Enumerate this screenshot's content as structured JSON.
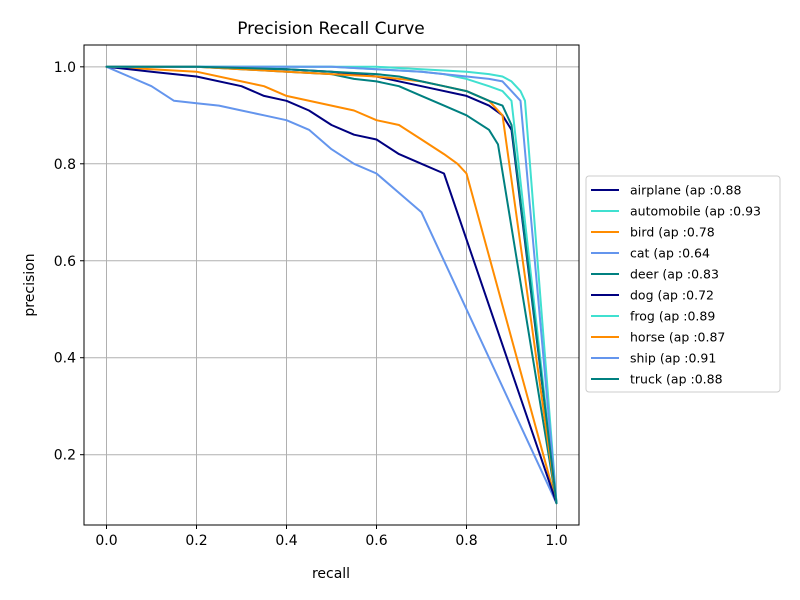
{
  "chart_data": {
    "type": "line",
    "title": "Precision Recall Curve",
    "xlabel": "recall",
    "ylabel": "precision",
    "xlim": [
      -0.05,
      1.05
    ],
    "ylim": [
      0.055,
      1.045
    ],
    "xticks": [
      0.0,
      0.2,
      0.4,
      0.6,
      0.8,
      1.0
    ],
    "yticks": [
      0.2,
      0.4,
      0.6,
      0.8,
      1.0
    ],
    "xtick_labels": [
      "0.0",
      "0.2",
      "0.4",
      "0.6",
      "0.8",
      "1.0"
    ],
    "ytick_labels": [
      "0.2",
      "0.4",
      "0.6",
      "0.8",
      "1.0"
    ],
    "grid": true,
    "legend_position": "right",
    "series": [
      {
        "name": "airplane (ap :0.88",
        "color": "#000080",
        "x": [
          0.0,
          0.2,
          0.4,
          0.5,
          0.6,
          0.7,
          0.8,
          0.85,
          0.88,
          0.9,
          1.0
        ],
        "y": [
          1.0,
          1.0,
          0.995,
          0.99,
          0.98,
          0.96,
          0.94,
          0.92,
          0.9,
          0.87,
          0.1
        ]
      },
      {
        "name": "automobile (ap :0.93",
        "color": "#40E0D0",
        "x": [
          0.0,
          0.3,
          0.5,
          0.6,
          0.7,
          0.8,
          0.85,
          0.88,
          0.9,
          0.92,
          0.93,
          1.0
        ],
        "y": [
          1.0,
          1.0,
          1.0,
          1.0,
          0.995,
          0.99,
          0.985,
          0.98,
          0.97,
          0.95,
          0.93,
          0.1
        ]
      },
      {
        "name": "bird (ap :0.78",
        "color": "#FF8C00",
        "x": [
          0.0,
          0.1,
          0.2,
          0.3,
          0.35,
          0.4,
          0.5,
          0.55,
          0.6,
          0.65,
          0.7,
          0.75,
          0.78,
          0.8,
          1.0
        ],
        "y": [
          1.0,
          0.995,
          0.99,
          0.97,
          0.96,
          0.94,
          0.92,
          0.91,
          0.89,
          0.88,
          0.85,
          0.82,
          0.8,
          0.78,
          0.1
        ]
      },
      {
        "name": "cat (ap :0.64",
        "color": "#6495ED",
        "x": [
          0.0,
          0.05,
          0.1,
          0.15,
          0.2,
          0.25,
          0.3,
          0.35,
          0.4,
          0.45,
          0.5,
          0.55,
          0.6,
          0.65,
          0.7,
          1.0
        ],
        "y": [
          1.0,
          0.98,
          0.96,
          0.93,
          0.925,
          0.92,
          0.91,
          0.9,
          0.89,
          0.87,
          0.83,
          0.8,
          0.78,
          0.74,
          0.7,
          0.1
        ]
      },
      {
        "name": "deer (ap :0.83",
        "color": "#008080",
        "x": [
          0.0,
          0.2,
          0.4,
          0.5,
          0.55,
          0.6,
          0.65,
          0.7,
          0.75,
          0.8,
          0.85,
          0.87,
          1.0
        ],
        "y": [
          1.0,
          1.0,
          0.99,
          0.985,
          0.975,
          0.97,
          0.96,
          0.94,
          0.92,
          0.9,
          0.87,
          0.84,
          0.1
        ]
      },
      {
        "name": "dog (ap :0.72",
        "color": "#000080",
        "x": [
          0.0,
          0.1,
          0.2,
          0.3,
          0.35,
          0.4,
          0.45,
          0.5,
          0.55,
          0.6,
          0.65,
          0.7,
          0.75,
          1.0
        ],
        "y": [
          1.0,
          0.99,
          0.98,
          0.96,
          0.94,
          0.93,
          0.91,
          0.88,
          0.86,
          0.85,
          0.82,
          0.8,
          0.78,
          0.1
        ]
      },
      {
        "name": "frog (ap :0.89",
        "color": "#40E0D0",
        "x": [
          0.0,
          0.3,
          0.5,
          0.6,
          0.7,
          0.75,
          0.8,
          0.85,
          0.88,
          0.9,
          1.0
        ],
        "y": [
          1.0,
          1.0,
          1.0,
          0.995,
          0.99,
          0.985,
          0.975,
          0.96,
          0.95,
          0.93,
          0.1
        ]
      },
      {
        "name": "horse (ap :0.87",
        "color": "#FF8C00",
        "x": [
          0.0,
          0.2,
          0.3,
          0.4,
          0.5,
          0.6,
          0.65,
          0.7,
          0.75,
          0.8,
          0.85,
          0.88,
          1.0
        ],
        "y": [
          1.0,
          1.0,
          0.995,
          0.99,
          0.985,
          0.98,
          0.975,
          0.97,
          0.96,
          0.95,
          0.93,
          0.9,
          0.1
        ]
      },
      {
        "name": "ship (ap :0.91",
        "color": "#6495ED",
        "x": [
          0.0,
          0.3,
          0.5,
          0.6,
          0.7,
          0.75,
          0.8,
          0.85,
          0.88,
          0.9,
          0.92,
          1.0
        ],
        "y": [
          1.0,
          1.0,
          1.0,
          0.995,
          0.99,
          0.985,
          0.98,
          0.975,
          0.97,
          0.95,
          0.93,
          0.1
        ]
      },
      {
        "name": "truck (ap :0.88",
        "color": "#008080",
        "x": [
          0.0,
          0.2,
          0.4,
          0.5,
          0.6,
          0.65,
          0.7,
          0.75,
          0.8,
          0.85,
          0.88,
          0.9,
          1.0
        ],
        "y": [
          1.0,
          1.0,
          0.995,
          0.99,
          0.985,
          0.98,
          0.97,
          0.96,
          0.95,
          0.93,
          0.92,
          0.88,
          0.1
        ]
      }
    ]
  }
}
